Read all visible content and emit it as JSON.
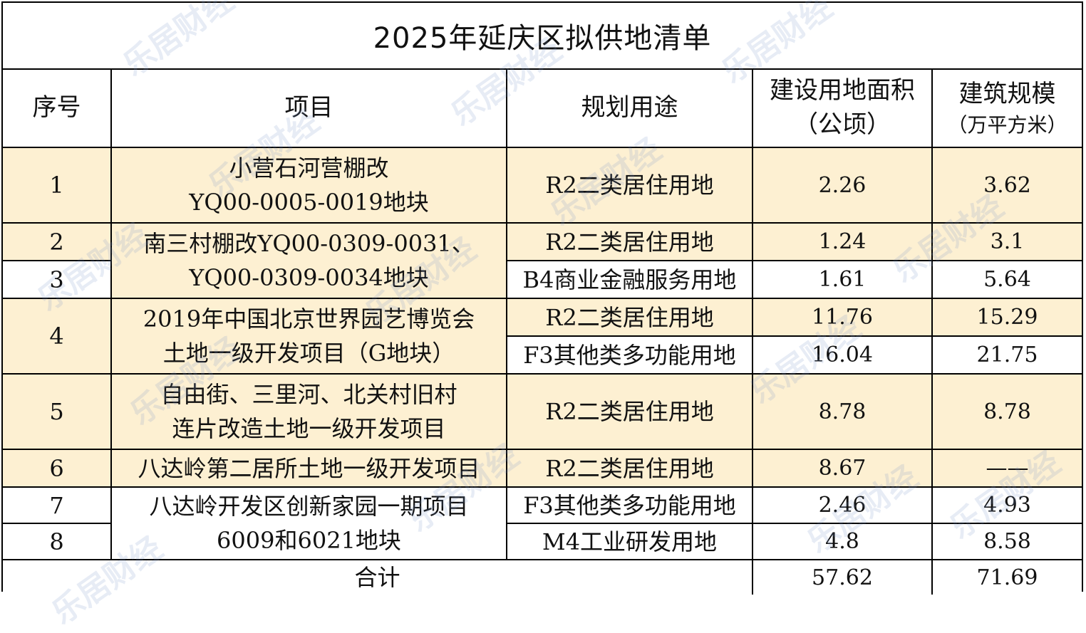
{
  "title": "2025年延庆区拟供地清单",
  "headers": {
    "seq": "序号",
    "project": "项目",
    "usage": "规划用途",
    "area_l1": "建设用地面积",
    "area_l2": "（公顷）",
    "scale_l1": "建筑规模",
    "scale_l2": "（万平方米）"
  },
  "rows": [
    {
      "seq": "1",
      "project_l1": "小营石河营棚改",
      "project_l2": "YQ00-0005-0019地块",
      "usage": "R2二类居住用地",
      "area": "2.26",
      "scale": "3.62"
    },
    {
      "seq": "2",
      "project_l1": "南三村棚改YQ00-0309-0031、",
      "project_l2": "YQ00-0309-0034地块",
      "usage": "R2二类居住用地",
      "area": "1.24",
      "scale": "3.1"
    },
    {
      "seq": "3",
      "usage": "B4商业金融服务用地",
      "area": "1.61",
      "scale": "5.64"
    },
    {
      "seq": "4",
      "project_l1": "2019年中国北京世界园艺博览会",
      "project_l2": "土地一级开发项目（G地块）",
      "usage": "R2二类居住用地",
      "area": "11.76",
      "scale": "15.29"
    },
    {
      "usage": "F3其他类多功能用地",
      "area": "16.04",
      "scale": "21.75"
    },
    {
      "seq": "5",
      "project_l1": "自由街、三里河、北关村旧村",
      "project_l2": "连片改造土地一级开发项目",
      "usage": "R2二类居住用地",
      "area": "8.78",
      "scale": "8.78"
    },
    {
      "seq": "6",
      "project_l1": "八达岭第二居所土地一级开发项目",
      "usage": "R2二类居住用地",
      "area": "8.67",
      "scale": "——"
    },
    {
      "seq": "7",
      "project_l1": "八达岭开发区创新家园一期项目",
      "project_l2": "6009和6021地块",
      "usage": "F3其他类多功能用地",
      "area": "2.46",
      "scale": "4.93"
    },
    {
      "seq": "8",
      "usage": "M4工业研发用地",
      "area": "4.8",
      "scale": "8.58"
    }
  ],
  "total": {
    "label": "合计",
    "area": "57.62",
    "scale": "71.69"
  },
  "watermark": "乐居财经"
}
